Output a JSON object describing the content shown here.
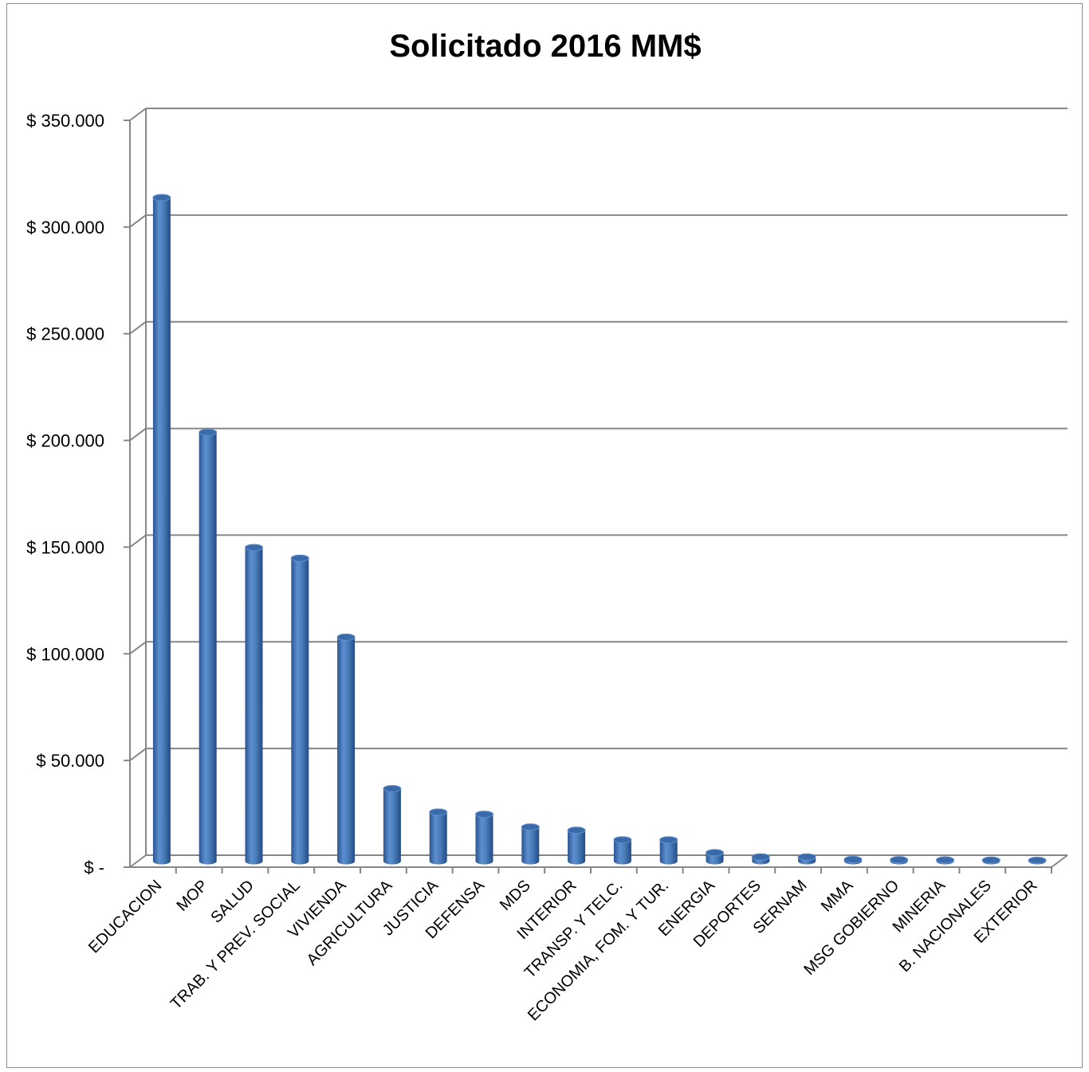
{
  "chart_data": {
    "type": "bar",
    "title": "Solicitado 2016 MM$",
    "xlabel": "",
    "ylabel": "",
    "ylim": [
      0,
      350000
    ],
    "yticks": [
      0,
      50000,
      100000,
      150000,
      200000,
      250000,
      300000,
      350000
    ],
    "ytick_labels": [
      "$ -",
      "$ 50.000",
      "$ 100.000",
      "$ 150.000",
      "$ 200.000",
      "$ 250.000",
      "$ 300.000",
      "$ 350.000"
    ],
    "grid": true,
    "legend": "none",
    "bar_color": "#4a7ebb",
    "categories": [
      "EDUCACION",
      "MOP",
      "SALUD",
      "TRAB. Y PREV. SOCIAL",
      "VIVIENDA",
      "AGRICULTURA",
      "JUSTICIA",
      "DEFENSA",
      "MDS",
      "INTERIOR",
      "TRANSP. Y TELC.",
      "ECONOMIA, FOM. Y TUR.",
      "ENERGIA",
      "DEPORTES",
      "SERNAM",
      "MMA",
      "MSG GOBIERNO",
      "MINERIA",
      "B. NACIONALES",
      "EXTERIOR"
    ],
    "values": [
      311000,
      201000,
      147000,
      142000,
      105000,
      34000,
      23000,
      22000,
      16000,
      14500,
      10000,
      10000,
      4000,
      2000,
      2000,
      800,
      700,
      600,
      500,
      400
    ]
  }
}
